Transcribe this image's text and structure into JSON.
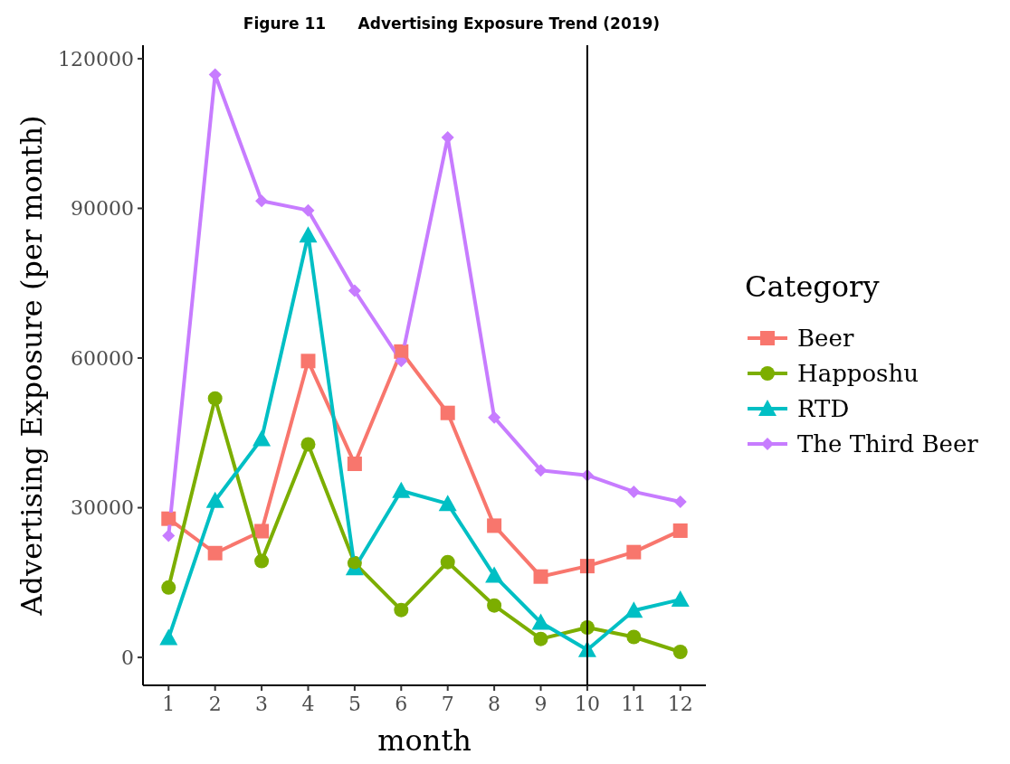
{
  "chart_data": {
    "type": "line",
    "title": "Figure 11      Advertising Exposure Trend (2019)",
    "xlabel": "month",
    "ylabel": "Advertising Exposure (per month)",
    "legend_title": "Category",
    "legend": "right",
    "grid": false,
    "x": [
      1,
      2,
      3,
      4,
      5,
      6,
      7,
      8,
      9,
      10,
      11,
      12
    ],
    "xlim": [
      0.45,
      12.55
    ],
    "xticks": [
      1,
      2,
      3,
      4,
      5,
      6,
      7,
      8,
      9,
      10,
      11,
      12
    ],
    "ylim": [
      -5600,
      122700
    ],
    "yticks": [
      0,
      30000,
      60000,
      90000,
      120000
    ],
    "ref_lines": [
      {
        "axis": "x",
        "value": 10,
        "color": "#000000"
      }
    ],
    "series": [
      {
        "name": "Beer",
        "color": "#f8766d",
        "marker": "square",
        "values": [
          27800,
          20900,
          25300,
          59400,
          38800,
          61300,
          49000,
          26400,
          16200,
          18300,
          21100,
          25400
        ]
      },
      {
        "name": "Happoshu",
        "color": "#7cae00",
        "marker": "circle",
        "values": [
          14000,
          51900,
          19300,
          42700,
          18900,
          9500,
          19100,
          10400,
          3700,
          6000,
          4100,
          1100
        ]
      },
      {
        "name": "RTD",
        "color": "#00bfc4",
        "marker": "triangle",
        "values": [
          3900,
          31400,
          43800,
          84600,
          17900,
          33400,
          30800,
          16400,
          7000,
          1500,
          9400,
          11600
        ]
      },
      {
        "name": "The Third Beer",
        "color": "#c77cff",
        "marker": "diamond",
        "values": [
          24400,
          116800,
          91500,
          89600,
          73500,
          59400,
          104200,
          48100,
          37500,
          36500,
          33200,
          31200
        ]
      }
    ]
  }
}
